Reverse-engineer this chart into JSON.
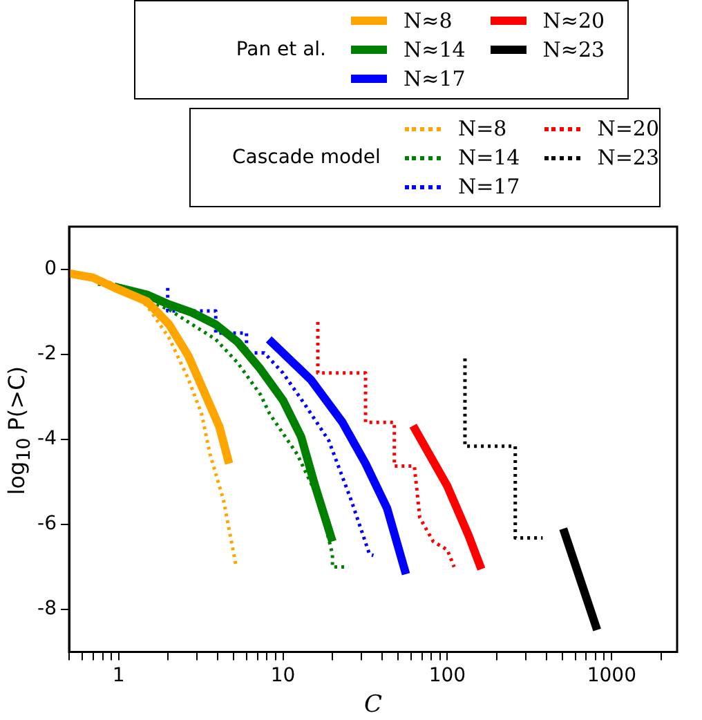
{
  "chart_data": {
    "type": "line",
    "xlabel": "C",
    "ylabel": "log$_{10}$ P(>C)",
    "annotations": [
      "Pan et al.",
      "Cascade model"
    ],
    "log": "x",
    "grid": false,
    "legend": "top",
    "marker": "none",
    "xlim": [
      0.5,
      2500
    ],
    "ylim": [
      -9,
      1
    ],
    "xticks": [
      {
        "value": 0.5,
        "label": null
      },
      {
        "value": 0.6,
        "label": null
      },
      {
        "value": 0.7,
        "label": null
      },
      {
        "value": 0.8,
        "label": null
      },
      {
        "value": 0.9,
        "label": null
      },
      1,
      {
        "value": 2,
        "label": null
      },
      {
        "value": 3,
        "label": null
      },
      {
        "value": 4,
        "label": null
      },
      {
        "value": 5,
        "label": null
      },
      {
        "value": 6,
        "label": null
      },
      {
        "value": 7,
        "label": null
      },
      {
        "value": 8,
        "label": null
      },
      {
        "value": 9,
        "label": null
      },
      10,
      {
        "value": 20,
        "label": null
      },
      {
        "value": 30,
        "label": null
      },
      {
        "value": 40,
        "label": null
      },
      {
        "value": 50,
        "label": null
      },
      {
        "value": 60,
        "label": null
      },
      {
        "value": 70,
        "label": null
      },
      {
        "value": 80,
        "label": null
      },
      {
        "value": 90,
        "label": null
      },
      100,
      {
        "value": 200,
        "label": null
      },
      {
        "value": 300,
        "label": null
      },
      {
        "value": 400,
        "label": null
      },
      {
        "value": 500,
        "label": null
      },
      {
        "value": 600,
        "label": null
      },
      {
        "value": 700,
        "label": null
      },
      {
        "value": 800,
        "label": null
      },
      {
        "value": 900,
        "label": null
      },
      1000,
      {
        "value": 2000,
        "label": null
      }
    ],
    "yticks": [
      -8,
      -6,
      -4,
      -2,
      0
    ],
    "series": [
      {
        "name": "N≈8",
        "color": "#ffa500",
        "line_style": "solid",
        "x": [
          0.5,
          0.7,
          0.95,
          1.49,
          2.03,
          2.65,
          3.4,
          4.1,
          4.7
        ],
        "values": [
          -0.1,
          -0.2,
          -0.44,
          -0.76,
          -1.3,
          -2.03,
          -2.98,
          -3.7,
          -4.57
        ]
      },
      {
        "name": "N≈14",
        "color": "#008000",
        "line_style": "solid",
        "x": [
          0.94,
          1.49,
          2.03,
          2.8,
          3.9,
          5.3,
          7.3,
          10,
          12.9,
          15.7,
          20
        ],
        "values": [
          -0.41,
          -0.6,
          -0.83,
          -1.02,
          -1.3,
          -1.71,
          -2.35,
          -3.08,
          -3.94,
          -5.1,
          -6.4
        ]
      },
      {
        "name": "N≈17",
        "color": "#0000ff",
        "line_style": "solid",
        "x": [
          8.2,
          14.8,
          23,
          31.8,
          43,
          56
        ],
        "values": [
          -1.65,
          -2.6,
          -3.6,
          -4.57,
          -5.62,
          -7.17
        ]
      },
      {
        "name": "N≈20",
        "color": "#ff0000",
        "line_style": "solid",
        "x": [
          61.9,
          100,
          135,
          161
        ],
        "values": [
          -3.68,
          -5.1,
          -6.27,
          -7.05
        ]
      },
      {
        "name": "N≈23",
        "color": "#000000",
        "line_style": "solid",
        "x": [
          507,
          815
        ],
        "values": [
          -6.1,
          -8.48
        ]
      },
      {
        "name": "N=8",
        "color": "#ffa500",
        "line_style": "dotted",
        "x": [
          0.5,
          0.7,
          1.0,
          1.49,
          2.03,
          2.65,
          3.2,
          3.6,
          4.35,
          5.17
        ],
        "values": [
          -0.05,
          -0.15,
          -0.4,
          -0.86,
          -1.62,
          -2.57,
          -3.4,
          -4.35,
          -5.43,
          -6.95
        ]
      },
      {
        "name": "N=14",
        "color": "#008000",
        "line_style": "dotted",
        "x": [
          0.75,
          1.0,
          2.03,
          2.8,
          3.9,
          5.3,
          7.3,
          8.3,
          12.2,
          16.6,
          20,
          20,
          25
        ],
        "values": [
          -0.35,
          -0.45,
          -0.95,
          -1.3,
          -1.65,
          -2.2,
          -2.95,
          -3.4,
          -4.35,
          -5.43,
          -6.7,
          -7.0,
          -7.0
        ]
      },
      {
        "name": "N=17",
        "color": "#0000ff",
        "line_style": "dotted",
        "x": [
          1.99,
          1.99,
          3.9,
          3.9,
          6,
          6,
          7.7,
          10,
          13.7,
          19,
          26,
          33.6,
          35.5
        ],
        "values": [
          -0.44,
          -0.98,
          -0.98,
          -1.5,
          -1.5,
          -1.97,
          -1.97,
          -2.44,
          -3.2,
          -4.03,
          -5.43,
          -6.7,
          -6.73
        ]
      },
      {
        "name": "N=20",
        "color": "#ff0000",
        "line_style": "dotted",
        "x": [
          16.3,
          16.3,
          31.8,
          31.8,
          47.6,
          47.6,
          63,
          68,
          82,
          100,
          110
        ],
        "values": [
          -1.24,
          -2.44,
          -2.44,
          -3.6,
          -3.6,
          -4.63,
          -4.63,
          -5.84,
          -6.4,
          -6.6,
          -7.0
        ]
      },
      {
        "name": "N=23",
        "color": "#000000",
        "line_style": "dotted",
        "x": [
          128,
          128,
          259,
          259,
          380
        ],
        "values": [
          -2.1,
          -4.16,
          -4.16,
          -6.32,
          -6.32
        ]
      }
    ]
  }
}
